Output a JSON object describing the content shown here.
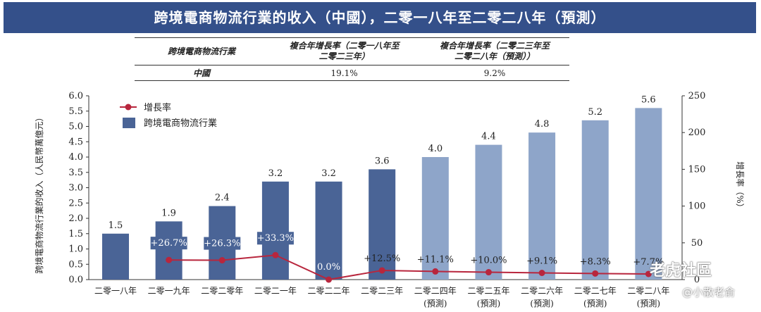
{
  "title": "跨境電商物流行業的收入（中國），二零一八年至二零二八年（預測）",
  "table": {
    "header": [
      "跨境電商物流行業",
      "複合年增長率（二零一八年至二零二三年）",
      "複合年增長率（二零二三年至二零二八年（預測））"
    ],
    "header_lines": [
      [
        "跨境電商物流行業"
      ],
      [
        "複合年增長率（二零一八年至",
        "二零二三年）"
      ],
      [
        "複合年增長率（二零二三年至",
        "二零二八年（預測））"
      ]
    ],
    "row": [
      "中國",
      "19.1%",
      "9.2%"
    ]
  },
  "chart_data": {
    "type": "bar",
    "title": "跨境電商物流行業的收入（中國），二零一八年至二零二八年（預測）",
    "categories": [
      "二零一八年",
      "二零一九年",
      "二零二零年",
      "二零二一年",
      "二零二二年",
      "二零二三年",
      "二零二四年",
      "二零二五年",
      "二零二六年",
      "二零二七年",
      "二零二八年"
    ],
    "forecast_labels": [
      "",
      "",
      "",
      "",
      "",
      "",
      "(預測)",
      "(預測)",
      "(預測)",
      "(預測)",
      "(預測)"
    ],
    "series": [
      {
        "name": "跨境電商物流行業",
        "type": "bar",
        "axis": "left",
        "values": [
          1.5,
          1.9,
          2.4,
          3.2,
          3.2,
          3.6,
          4.0,
          4.4,
          4.8,
          5.2,
          5.6
        ],
        "labels": [
          "1.5",
          "1.9",
          "2.4",
          "3.2",
          "3.2",
          "3.6",
          "4.0",
          "4.4",
          "4.8",
          "5.2",
          "5.6"
        ]
      },
      {
        "name": "增長率",
        "type": "line",
        "axis": "right",
        "values": [
          null,
          26.7,
          26.3,
          33.3,
          0.0,
          12.5,
          11.1,
          10.0,
          9.1,
          8.3,
          7.7
        ],
        "labels": [
          "",
          "+26.7%",
          "+26.3%",
          "+33.3%",
          "0.0%",
          "+12.5%",
          "+11.1%",
          "+10.0%",
          "+9.1%",
          "+8.3%",
          "+7.7%"
        ]
      }
    ],
    "ylabel": "跨境電商物流行業的收入（人民幣萬億元）",
    "ylabel_right": "增長率（%）",
    "ylim": [
      0,
      6
    ],
    "yticks": [
      "0.0",
      "0.5",
      "1.0",
      "1.5",
      "2.0",
      "2.5",
      "3.0",
      "3.5",
      "4.0",
      "4.5",
      "5.0",
      "5.5",
      "6.0"
    ],
    "ylim_right": [
      0,
      250
    ],
    "yticks_right": [
      "0",
      "50",
      "100",
      "150",
      "200",
      "250"
    ],
    "colors": {
      "actual": "#4a6496",
      "forecast": "#8ea5c9",
      "line": "#b8263d",
      "label_box": "#4a6496"
    },
    "legend": {
      "position": "top-left",
      "line_label": "增長率",
      "bar_label": "跨境電商物流行業"
    }
  },
  "watermark": {
    "logo": "老虎社區",
    "user": "@小散老俞"
  }
}
